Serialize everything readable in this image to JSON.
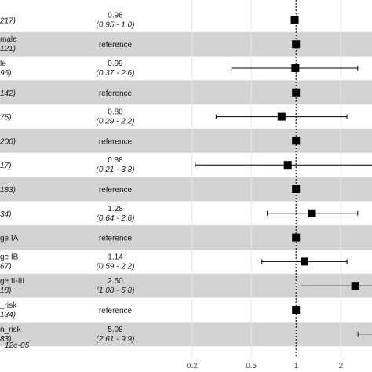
{
  "chart_data": {
    "type": "forest",
    "x_scale": "log",
    "xlim": [
      0.15,
      3.0
    ],
    "x_ticks": [
      {
        "value": 0.2,
        "label": "0.2"
      },
      {
        "value": 0.5,
        "label": "0.5"
      },
      {
        "value": 1,
        "label": "1"
      },
      {
        "value": 2,
        "label": "2"
      }
    ],
    "reference_line": 1,
    "rows": [
      {
        "label": "",
        "n": "217)",
        "estimate_text": "0.98",
        "ci_text": "(0.95 - 1.0)",
        "estimate": 0.98,
        "lower": 0.95,
        "upper": 1.0
      },
      {
        "label": "male",
        "n": "121)",
        "estimate_text": "reference",
        "ci_text": "",
        "estimate": 1.0,
        "lower": null,
        "upper": null
      },
      {
        "label": "le",
        "n": "96)",
        "estimate_text": "0.99",
        "ci_text": "(0.37 - 2.6)",
        "estimate": 0.99,
        "lower": 0.37,
        "upper": 2.6
      },
      {
        "label": "",
        "n": "142)",
        "estimate_text": "reference",
        "ci_text": "",
        "estimate": 1.0,
        "lower": null,
        "upper": null
      },
      {
        "label": "",
        "n": "75)",
        "estimate_text": "0.80",
        "ci_text": "(0.29 - 2.2)",
        "estimate": 0.8,
        "lower": 0.29,
        "upper": 2.2
      },
      {
        "label": "",
        "n": "200)",
        "estimate_text": "reference",
        "ci_text": "",
        "estimate": 1.0,
        "lower": null,
        "upper": null
      },
      {
        "label": "",
        "n": "17)",
        "estimate_text": "0.88",
        "ci_text": "(0.21 - 3.8)",
        "estimate": 0.88,
        "lower": 0.21,
        "upper": 3.8
      },
      {
        "label": "",
        "n": "183)",
        "estimate_text": "reference",
        "ci_text": "",
        "estimate": 1.0,
        "lower": null,
        "upper": null
      },
      {
        "label": "",
        "n": "34)",
        "estimate_text": "1.28",
        "ci_text": "(0.64 - 2.6)",
        "estimate": 1.28,
        "lower": 0.64,
        "upper": 2.6
      },
      {
        "label": "ge IA",
        "n": "",
        "estimate_text": "reference",
        "ci_text": "",
        "estimate": 1.0,
        "lower": null,
        "upper": null
      },
      {
        "label": "ge IB",
        "n": "67)",
        "estimate_text": "1.14",
        "ci_text": "(0.59 - 2.2)",
        "estimate": 1.14,
        "lower": 0.59,
        "upper": 2.2
      },
      {
        "label": "ge II-III",
        "n": "18)",
        "estimate_text": "2.50",
        "ci_text": "(1.08 - 5.8)",
        "estimate": 2.5,
        "lower": 1.08,
        "upper": 5.8
      },
      {
        "label": "_risk",
        "n": "134)",
        "estimate_text": "reference",
        "ci_text": "",
        "estimate": 1.0,
        "lower": null,
        "upper": null
      },
      {
        "label": "n_risk",
        "n": "83)",
        "estimate_text": "5.08",
        "ci_text": "(2.61 - 9.9)",
        "estimate": 5.08,
        "lower": 2.61,
        "upper": 9.9
      }
    ],
    "footer_text": "12e-05",
    "colors": {
      "band": "#d3d3d3",
      "marker": "#000000",
      "ci": "#000000",
      "grid": "#e6e6e6",
      "ref_line": "#000000"
    }
  }
}
